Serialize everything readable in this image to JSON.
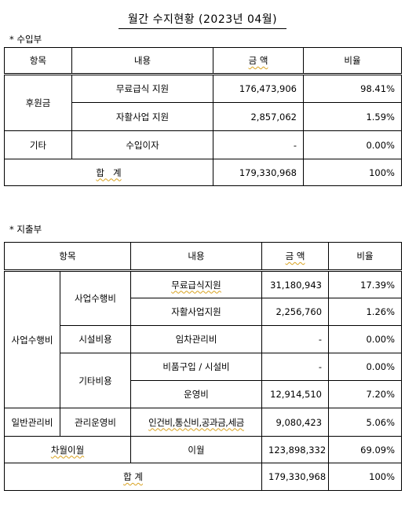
{
  "title": "월간 수지현황 (2023년 04월)",
  "income": {
    "section_label": "* 수입부",
    "headers": [
      "항목",
      "내용",
      "금 액",
      "비율"
    ],
    "group_donation": "후원금",
    "rows": [
      {
        "content": "무료급식 지원",
        "amount": "176,473,906",
        "ratio": "98.41%"
      },
      {
        "content": "자활사업 지원",
        "amount": "2,857,062",
        "ratio": "1.59%"
      }
    ],
    "other": {
      "item": "기타",
      "content": "수입이자",
      "amount": "-",
      "ratio": "0.00%"
    },
    "total": {
      "label": "합   계",
      "amount": "179,330,968",
      "ratio": "100%"
    }
  },
  "expense": {
    "section_label": "* 지출부",
    "headers": [
      "항목",
      "내용",
      "금 액",
      "비율"
    ],
    "group_business": "사업수행비",
    "sub_business": "사업수행비",
    "sub_facility": "시설비용",
    "sub_etc": "기타비용",
    "group_general": "일반관리비",
    "sub_admin": "관리운영비",
    "rows": [
      {
        "content": "무료급식지원",
        "amount": "31,180,943",
        "ratio": "17.39%"
      },
      {
        "content": "자활사업지원",
        "amount": "2,256,760",
        "ratio": "1.26%"
      },
      {
        "content": "임차관리비",
        "amount": "-",
        "ratio": "0.00%"
      },
      {
        "content": "비품구입 / 시설비",
        "amount": "-",
        "ratio": "0.00%"
      },
      {
        "content": "운영비",
        "amount": "12,914,510",
        "ratio": "7.20%"
      },
      {
        "content": "인건비,통신비,공과금,세금",
        "amount": "9,080,423",
        "ratio": "5.06%"
      }
    ],
    "carryover": {
      "item": "차월이월",
      "content": "이월",
      "amount": "123,898,332",
      "ratio": "69.09%"
    },
    "total": {
      "label": "합 계",
      "amount": "179,330,968",
      "ratio": "100%"
    }
  }
}
